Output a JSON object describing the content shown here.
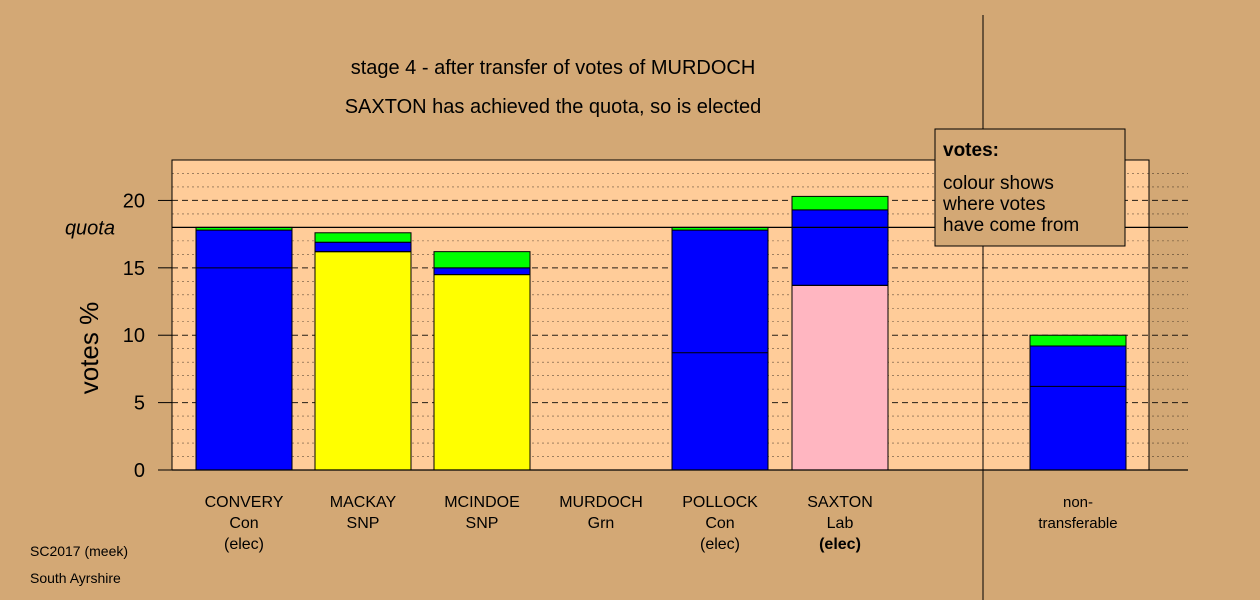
{
  "titles": {
    "line1": "stage 4 - after transfer of votes of MURDOCH",
    "line2": "SAXTON has achieved the quota, so is elected"
  },
  "legend": {
    "heading": "votes:",
    "lines": [
      "colour shows",
      "where votes",
      "have come from"
    ]
  },
  "footer": {
    "line1": "SC2017 (meek)",
    "line2": "South Ayrshire"
  },
  "chart_data": {
    "type": "bar",
    "stacked": true,
    "ylabel": "votes %",
    "ylim": [
      0,
      23
    ],
    "yticks": [
      0,
      5,
      10,
      15,
      20
    ],
    "quota": 18.0,
    "quota_label": "quota",
    "colors": {
      "blue": "#0000ff",
      "yellow": "#ffff00",
      "green": "#00ff00",
      "pink": "#ffb6c1",
      "panel": "#ffcc99",
      "background": "#d3a875"
    },
    "categories": [
      {
        "lines": [
          "CONVERY",
          "Con",
          "(elec)"
        ],
        "first_pref": 15.0,
        "segments": [
          {
            "color": "blue",
            "value": 17.8
          },
          {
            "color": "green",
            "value": 0.2
          }
        ]
      },
      {
        "lines": [
          "MACKAY",
          "SNP"
        ],
        "first_pref": 16.2,
        "segments": [
          {
            "color": "yellow",
            "value": 16.2
          },
          {
            "color": "blue",
            "value": 0.7
          },
          {
            "color": "green",
            "value": 0.7
          }
        ]
      },
      {
        "lines": [
          "MCINDOE",
          "SNP"
        ],
        "first_pref": 14.5,
        "segments": [
          {
            "color": "yellow",
            "value": 14.5
          },
          {
            "color": "blue",
            "value": 0.5
          },
          {
            "color": "green",
            "value": 1.2
          }
        ]
      },
      {
        "lines": [
          "MURDOCH",
          "Grn"
        ],
        "first_pref": 0,
        "segments": []
      },
      {
        "lines": [
          "POLLOCK",
          "Con",
          "(elec)"
        ],
        "first_pref": 8.7,
        "segments": [
          {
            "color": "blue",
            "value": 17.8
          },
          {
            "color": "green",
            "value": 0.2
          }
        ]
      },
      {
        "lines": [
          "SAXTON",
          "Lab",
          "(elec)"
        ],
        "first_pref": 13.7,
        "segments": [
          {
            "color": "pink",
            "value": 13.7
          },
          {
            "color": "blue",
            "value": 5.6
          },
          {
            "color": "green",
            "value": 1.0
          }
        ]
      },
      {
        "lines": [
          "non-",
          "transferable"
        ],
        "first_pref": 6.2,
        "segments": [
          {
            "color": "blue",
            "value": 9.2
          },
          {
            "color": "green",
            "value": 0.8
          }
        ]
      }
    ]
  }
}
